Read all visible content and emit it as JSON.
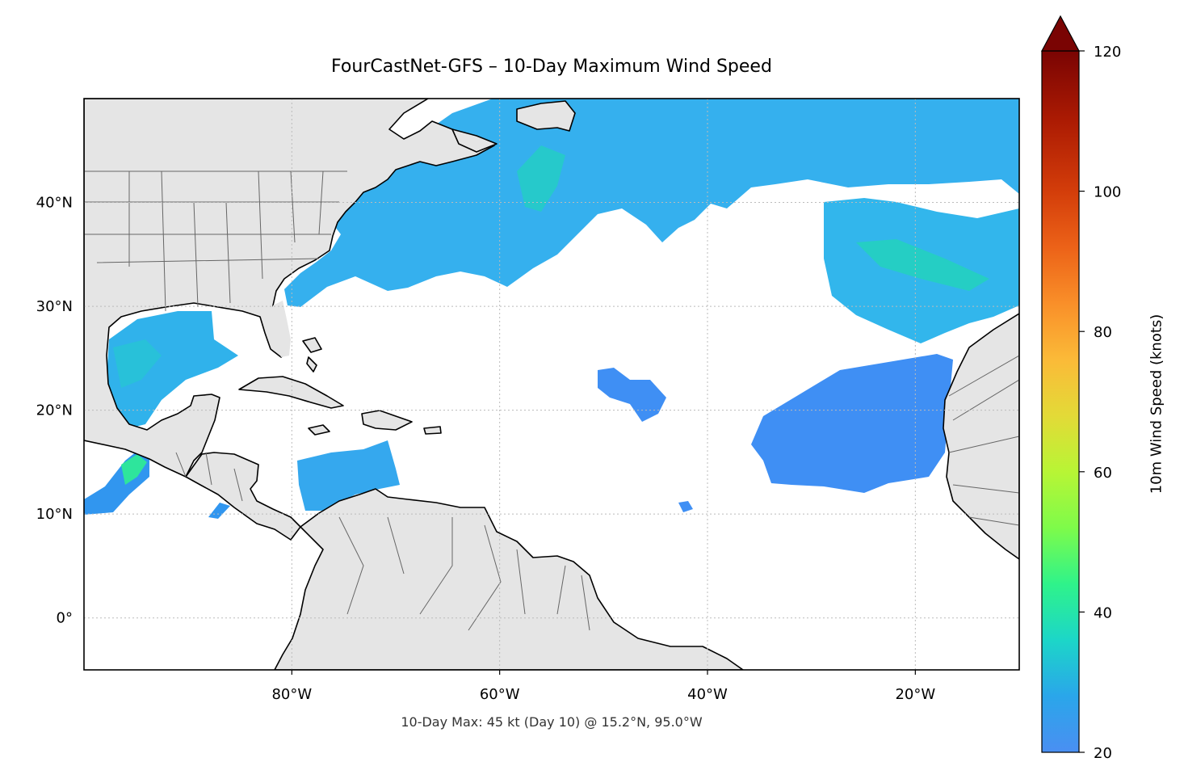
{
  "title": "FourCastNet-GFS – 10-Day Maximum Wind Speed",
  "footnote": "10-Day Max: 45 kt (Day 10) @ 15.2°N, 95.0°W",
  "map": {
    "lon_range": [
      -100,
      -10
    ],
    "lat_range": [
      -5,
      50
    ],
    "lon_ticks": [
      {
        "value": -80,
        "label": "80°W"
      },
      {
        "value": -60,
        "label": "60°W"
      },
      {
        "value": -40,
        "label": "40°W"
      },
      {
        "value": -20,
        "label": "20°W"
      }
    ],
    "lat_ticks": [
      {
        "value": 40,
        "label": "40°N"
      },
      {
        "value": 30,
        "label": "30°N"
      },
      {
        "value": 20,
        "label": "20°N"
      },
      {
        "value": 10,
        "label": "10°N"
      },
      {
        "value": 0,
        "label": "0°"
      }
    ],
    "gridlines": true,
    "land_color": "#e5e5e5",
    "ocean_color": "#ffffff"
  },
  "colorbar": {
    "label": "10m Wind Speed (knots)",
    "min": 20,
    "max": 120,
    "extend": "max",
    "colormap": "turbo",
    "ticks": [
      {
        "value": 20,
        "label": "20"
      },
      {
        "value": 40,
        "label": "40"
      },
      {
        "value": 60,
        "label": "60"
      },
      {
        "value": 80,
        "label": "80"
      },
      {
        "value": 100,
        "label": "100"
      },
      {
        "value": 120,
        "label": "120"
      }
    ]
  },
  "peak": {
    "speed_kt": 45,
    "day": 10,
    "lat": 15.2,
    "lon": -95.0
  }
}
